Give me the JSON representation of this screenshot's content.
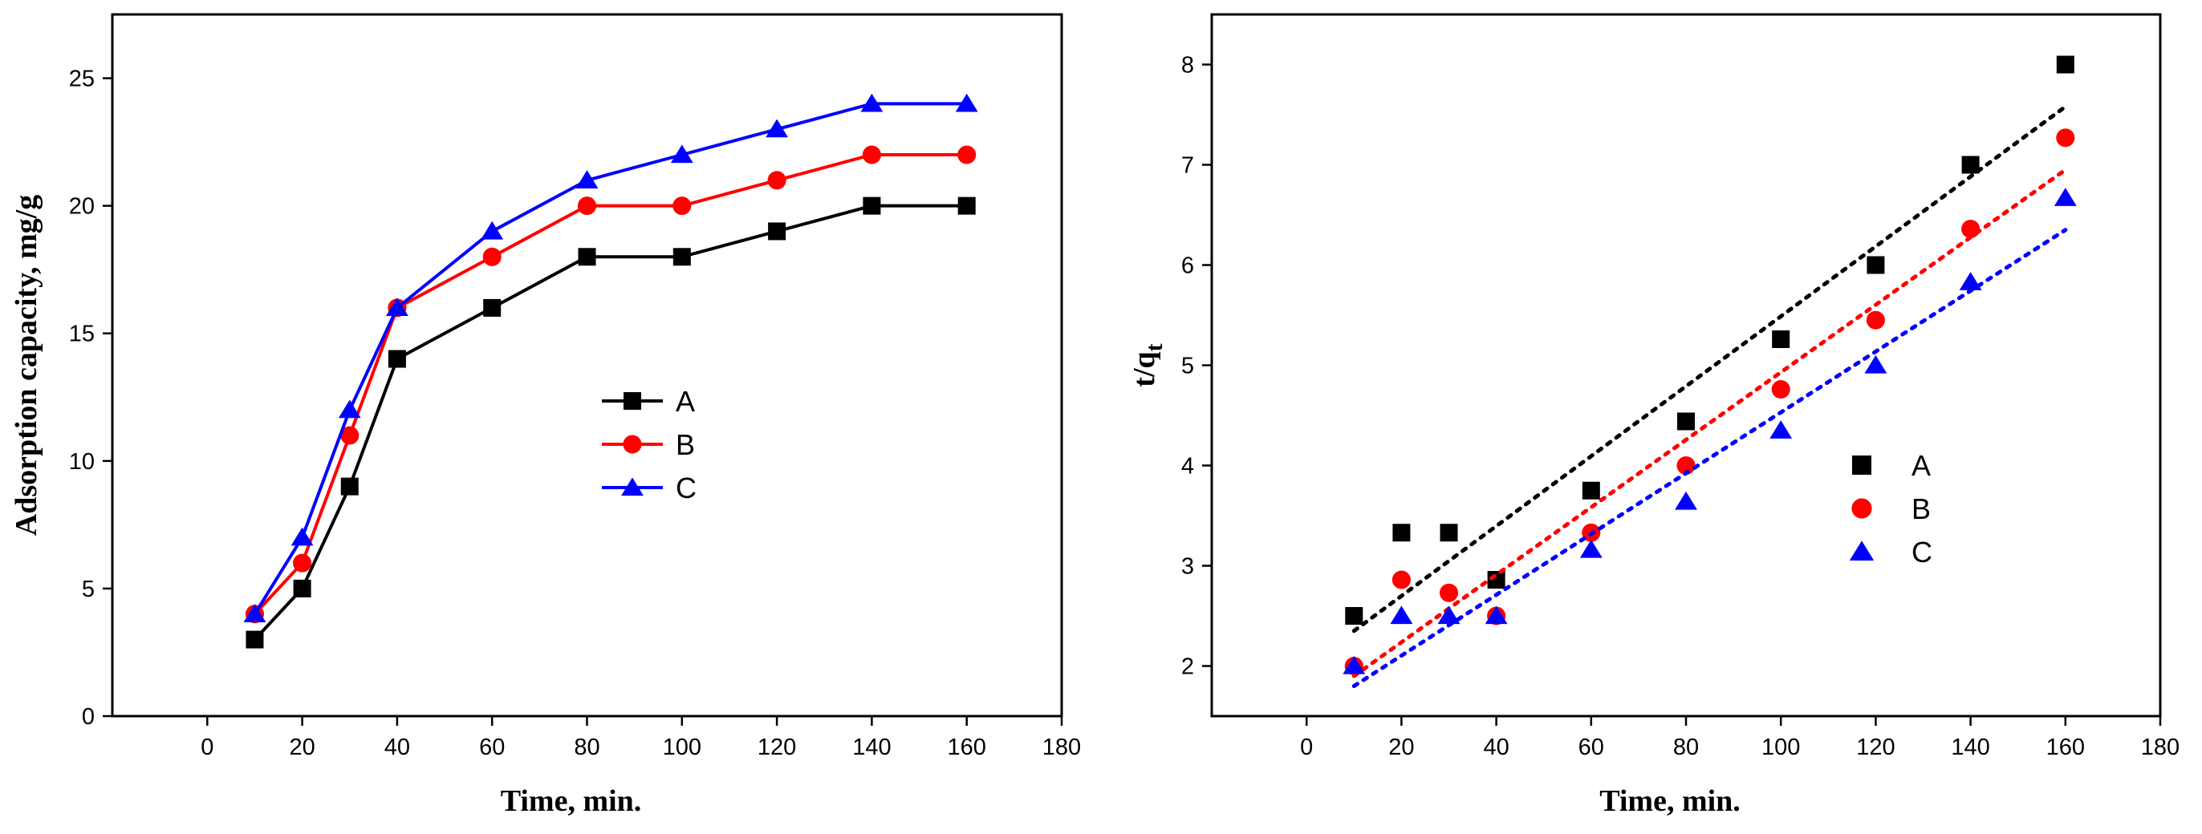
{
  "chart_data": [
    {
      "type": "line",
      "title": "",
      "xlabel": "Time, min.",
      "ylabel": "Adsorption capacity, mg/g",
      "xlim": [
        -20,
        180
      ],
      "ylim": [
        0,
        27.5
      ],
      "xticks": [
        0,
        20,
        40,
        60,
        80,
        100,
        120,
        140,
        160,
        180
      ],
      "yticks": [
        0,
        5,
        10,
        15,
        20,
        25
      ],
      "x": [
        10,
        20,
        30,
        40,
        60,
        80,
        100,
        120,
        140,
        160
      ],
      "legend_position": "center",
      "series": [
        {
          "name": "A",
          "marker": "square",
          "color": "#000000",
          "values": [
            3,
            5,
            9,
            14,
            16,
            18,
            18,
            19,
            20,
            20
          ]
        },
        {
          "name": "B",
          "marker": "circle",
          "color": "#ff0000",
          "values": [
            4,
            6,
            11,
            16,
            18,
            20,
            20,
            21,
            22,
            22
          ]
        },
        {
          "name": "C",
          "marker": "triangle",
          "color": "#0000ff",
          "values": [
            4,
            7,
            12,
            16,
            19,
            21,
            22,
            23,
            24,
            24
          ]
        }
      ]
    },
    {
      "type": "scatter",
      "title": "",
      "xlabel": "Time, min.",
      "ylabel": "t/q",
      "ylabel_subscript": "t",
      "xlim": [
        -20,
        180
      ],
      "ylim": [
        1.5,
        8.5
      ],
      "xticks": [
        0,
        20,
        40,
        60,
        80,
        100,
        120,
        140,
        160,
        180
      ],
      "yticks": [
        2,
        3,
        4,
        5,
        6,
        7,
        8
      ],
      "x": [
        10,
        20,
        30,
        40,
        60,
        80,
        100,
        120,
        140,
        160
      ],
      "legend_position": "center-right",
      "series": [
        {
          "name": "A",
          "marker": "square",
          "color": "#000000",
          "values": [
            2.5,
            3.33,
            3.33,
            2.86,
            3.75,
            4.44,
            5.26,
            6.0,
            7.0,
            8.0
          ],
          "fit": [
            2.35,
            7.58
          ]
        },
        {
          "name": "B",
          "marker": "circle",
          "color": "#ff0000",
          "values": [
            2.0,
            2.86,
            2.73,
            2.5,
            3.33,
            4.0,
            4.76,
            5.45,
            6.36,
            7.27
          ],
          "fit": [
            1.9,
            6.95
          ]
        },
        {
          "name": "C",
          "marker": "triangle",
          "color": "#0000ff",
          "values": [
            2.0,
            2.5,
            2.5,
            2.5,
            3.16,
            3.64,
            4.35,
            5.0,
            5.83,
            6.67
          ],
          "fit": [
            1.8,
            6.35
          ]
        }
      ]
    }
  ]
}
